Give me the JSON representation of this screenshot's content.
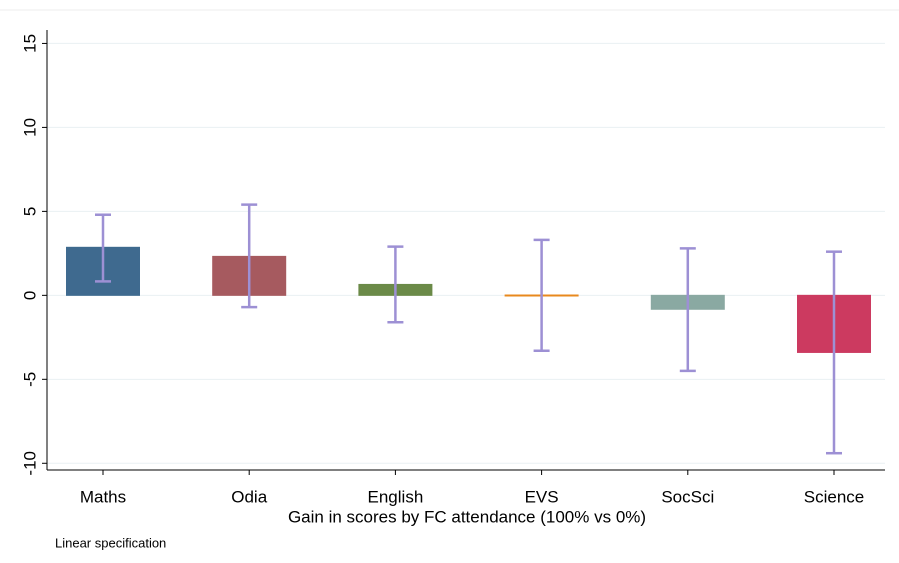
{
  "chart_data": {
    "type": "bar",
    "x_label": "Gain in scores by FC attendance (100% vs 0%)",
    "note": "Linear specification",
    "categories": [
      "Maths",
      "Odia",
      "English",
      "EVS",
      "SocSci",
      "Science"
    ],
    "values": [
      2.86,
      2.32,
      0.65,
      0.02,
      -0.83,
      -3.4
    ],
    "ci_lower": [
      0.83,
      -0.7,
      -1.6,
      -3.3,
      -4.5,
      -9.4
    ],
    "ci_upper": [
      4.8,
      5.4,
      2.9,
      3.3,
      2.8,
      2.6
    ],
    "colors": [
      "#3f6a8f",
      "#a65a5f",
      "#6b8a48",
      "#e8891e",
      "#8aa9a2",
      "#cc3a60"
    ],
    "error_color": "#9d90d4",
    "ylim": [
      -10.4,
      15.8
    ],
    "yticks": [
      -10,
      -5,
      0,
      5,
      10,
      15
    ],
    "grid": true
  }
}
